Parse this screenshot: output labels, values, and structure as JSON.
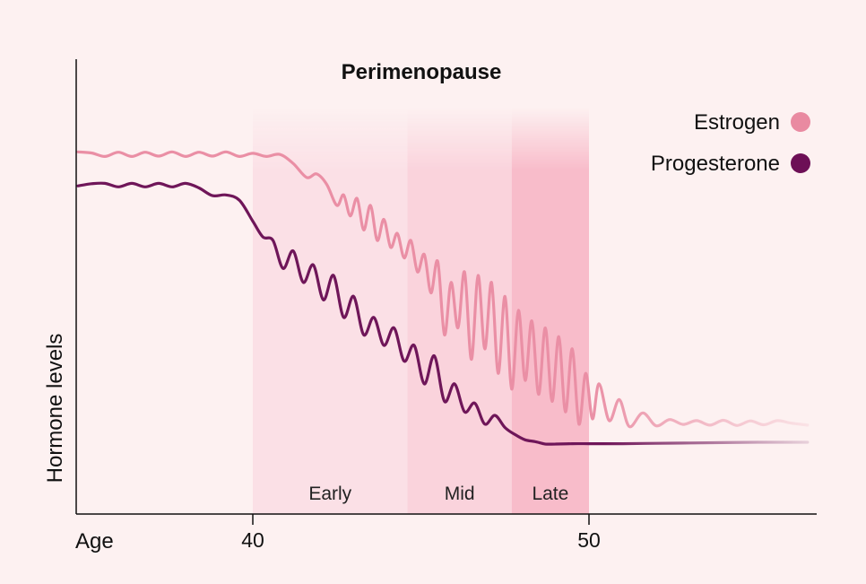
{
  "chart_data": {
    "type": "line",
    "title": "Perimenopause",
    "xlabel": "Age",
    "ylabel": "Hormone levels",
    "x_ticks": [
      40,
      50
    ],
    "xlim": [
      34.7,
      56.7
    ],
    "ylim": [
      0,
      100
    ],
    "legend_position": "top-right",
    "phases": [
      {
        "label": "Early",
        "start": 40,
        "end": 44.6,
        "color": "#fbe0e6"
      },
      {
        "label": "Mid",
        "start": 44.6,
        "end": 47.7,
        "color": "#fad3dc"
      },
      {
        "label": "Late",
        "start": 47.7,
        "end": 50,
        "color": "#f8bcca"
      }
    ],
    "series": [
      {
        "name": "Estrogen",
        "color": "#e98aa1",
        "line_color": "#ea8fa5",
        "x": [
          34.8,
          35.2,
          35.6,
          36.0,
          36.4,
          36.8,
          37.2,
          37.6,
          38.0,
          38.4,
          38.8,
          39.2,
          39.6,
          40.0,
          40.4,
          40.8,
          41.2,
          41.6,
          41.9,
          42.2,
          42.5,
          42.7,
          42.9,
          43.1,
          43.3,
          43.5,
          43.7,
          43.9,
          44.1,
          44.3,
          44.5,
          44.7,
          44.9,
          45.1,
          45.3,
          45.5,
          45.7,
          45.9,
          46.1,
          46.3,
          46.5,
          46.7,
          46.9,
          47.1,
          47.3,
          47.5,
          47.7,
          47.9,
          48.1,
          48.3,
          48.5,
          48.7,
          48.9,
          49.1,
          49.3,
          49.5,
          49.7,
          49.9,
          50.1,
          50.3,
          50.6,
          50.9,
          51.2,
          51.6,
          52.0,
          52.4,
          52.8,
          53.2,
          53.6,
          54.0,
          54.4,
          54.8,
          55.2,
          55.6,
          56.0,
          56.5
        ],
        "values": [
          85.3,
          85.0,
          84.0,
          85.2,
          84.0,
          85.2,
          84.1,
          85.3,
          84.0,
          85.2,
          84.1,
          85.3,
          84.0,
          84.9,
          84.0,
          84.6,
          82.0,
          78.0,
          79.0,
          76.0,
          70.0,
          73.0,
          67.0,
          72.0,
          63.0,
          70.0,
          60.0,
          66.0,
          58.0,
          62.0,
          55.0,
          60.0,
          51.0,
          56.0,
          45.0,
          54.0,
          33.0,
          48.0,
          35.0,
          51.0,
          26.0,
          50.0,
          29.0,
          48.0,
          22.0,
          44.0,
          17.5,
          40.0,
          20.0,
          37.0,
          16.0,
          35.0,
          14.0,
          32.5,
          11.0,
          29.0,
          7.5,
          22.0,
          9.0,
          19.0,
          8.5,
          14.5,
          6.8,
          10.7,
          7.0,
          8.8,
          7.4,
          8.5,
          7.2,
          8.6,
          7.1,
          8.4,
          7.3,
          8.5,
          7.8,
          7.2
        ]
      },
      {
        "name": "Progesterone",
        "color": "#6d0f56",
        "line_color": "#6f1659",
        "x": [
          34.8,
          35.2,
          35.6,
          36.0,
          36.4,
          36.8,
          37.2,
          37.6,
          38.0,
          38.4,
          38.8,
          39.2,
          39.6,
          40.0,
          40.3,
          40.6,
          40.9,
          41.2,
          41.5,
          41.8,
          42.1,
          42.4,
          42.7,
          43.0,
          43.3,
          43.6,
          43.9,
          44.2,
          44.5,
          44.8,
          45.1,
          45.4,
          45.7,
          46.0,
          46.3,
          46.6,
          46.9,
          47.2,
          47.5,
          47.8,
          48.1,
          48.4,
          48.7,
          49.0,
          49.5,
          50.0,
          50.5,
          51.0,
          52.0,
          53.0,
          54.0,
          55.0,
          56.5
        ],
        "values": [
          75.6,
          76.2,
          76.3,
          75.3,
          76.3,
          75.3,
          76.3,
          75.3,
          76.3,
          75.0,
          72.8,
          73.0,
          71.5,
          65.5,
          61.0,
          60.0,
          52.0,
          57.0,
          48.0,
          53.0,
          43.0,
          50.0,
          38.0,
          44.0,
          33.0,
          38.0,
          30.0,
          35.0,
          25.5,
          30.0,
          19.0,
          27.0,
          14.0,
          19.0,
          11.0,
          13.5,
          7.5,
          10.0,
          6.5,
          4.5,
          3.0,
          2.5,
          1.8,
          1.8,
          1.9,
          1.9,
          1.9,
          1.9,
          2.0,
          2.1,
          2.2,
          2.3,
          2.3
        ]
      }
    ]
  }
}
